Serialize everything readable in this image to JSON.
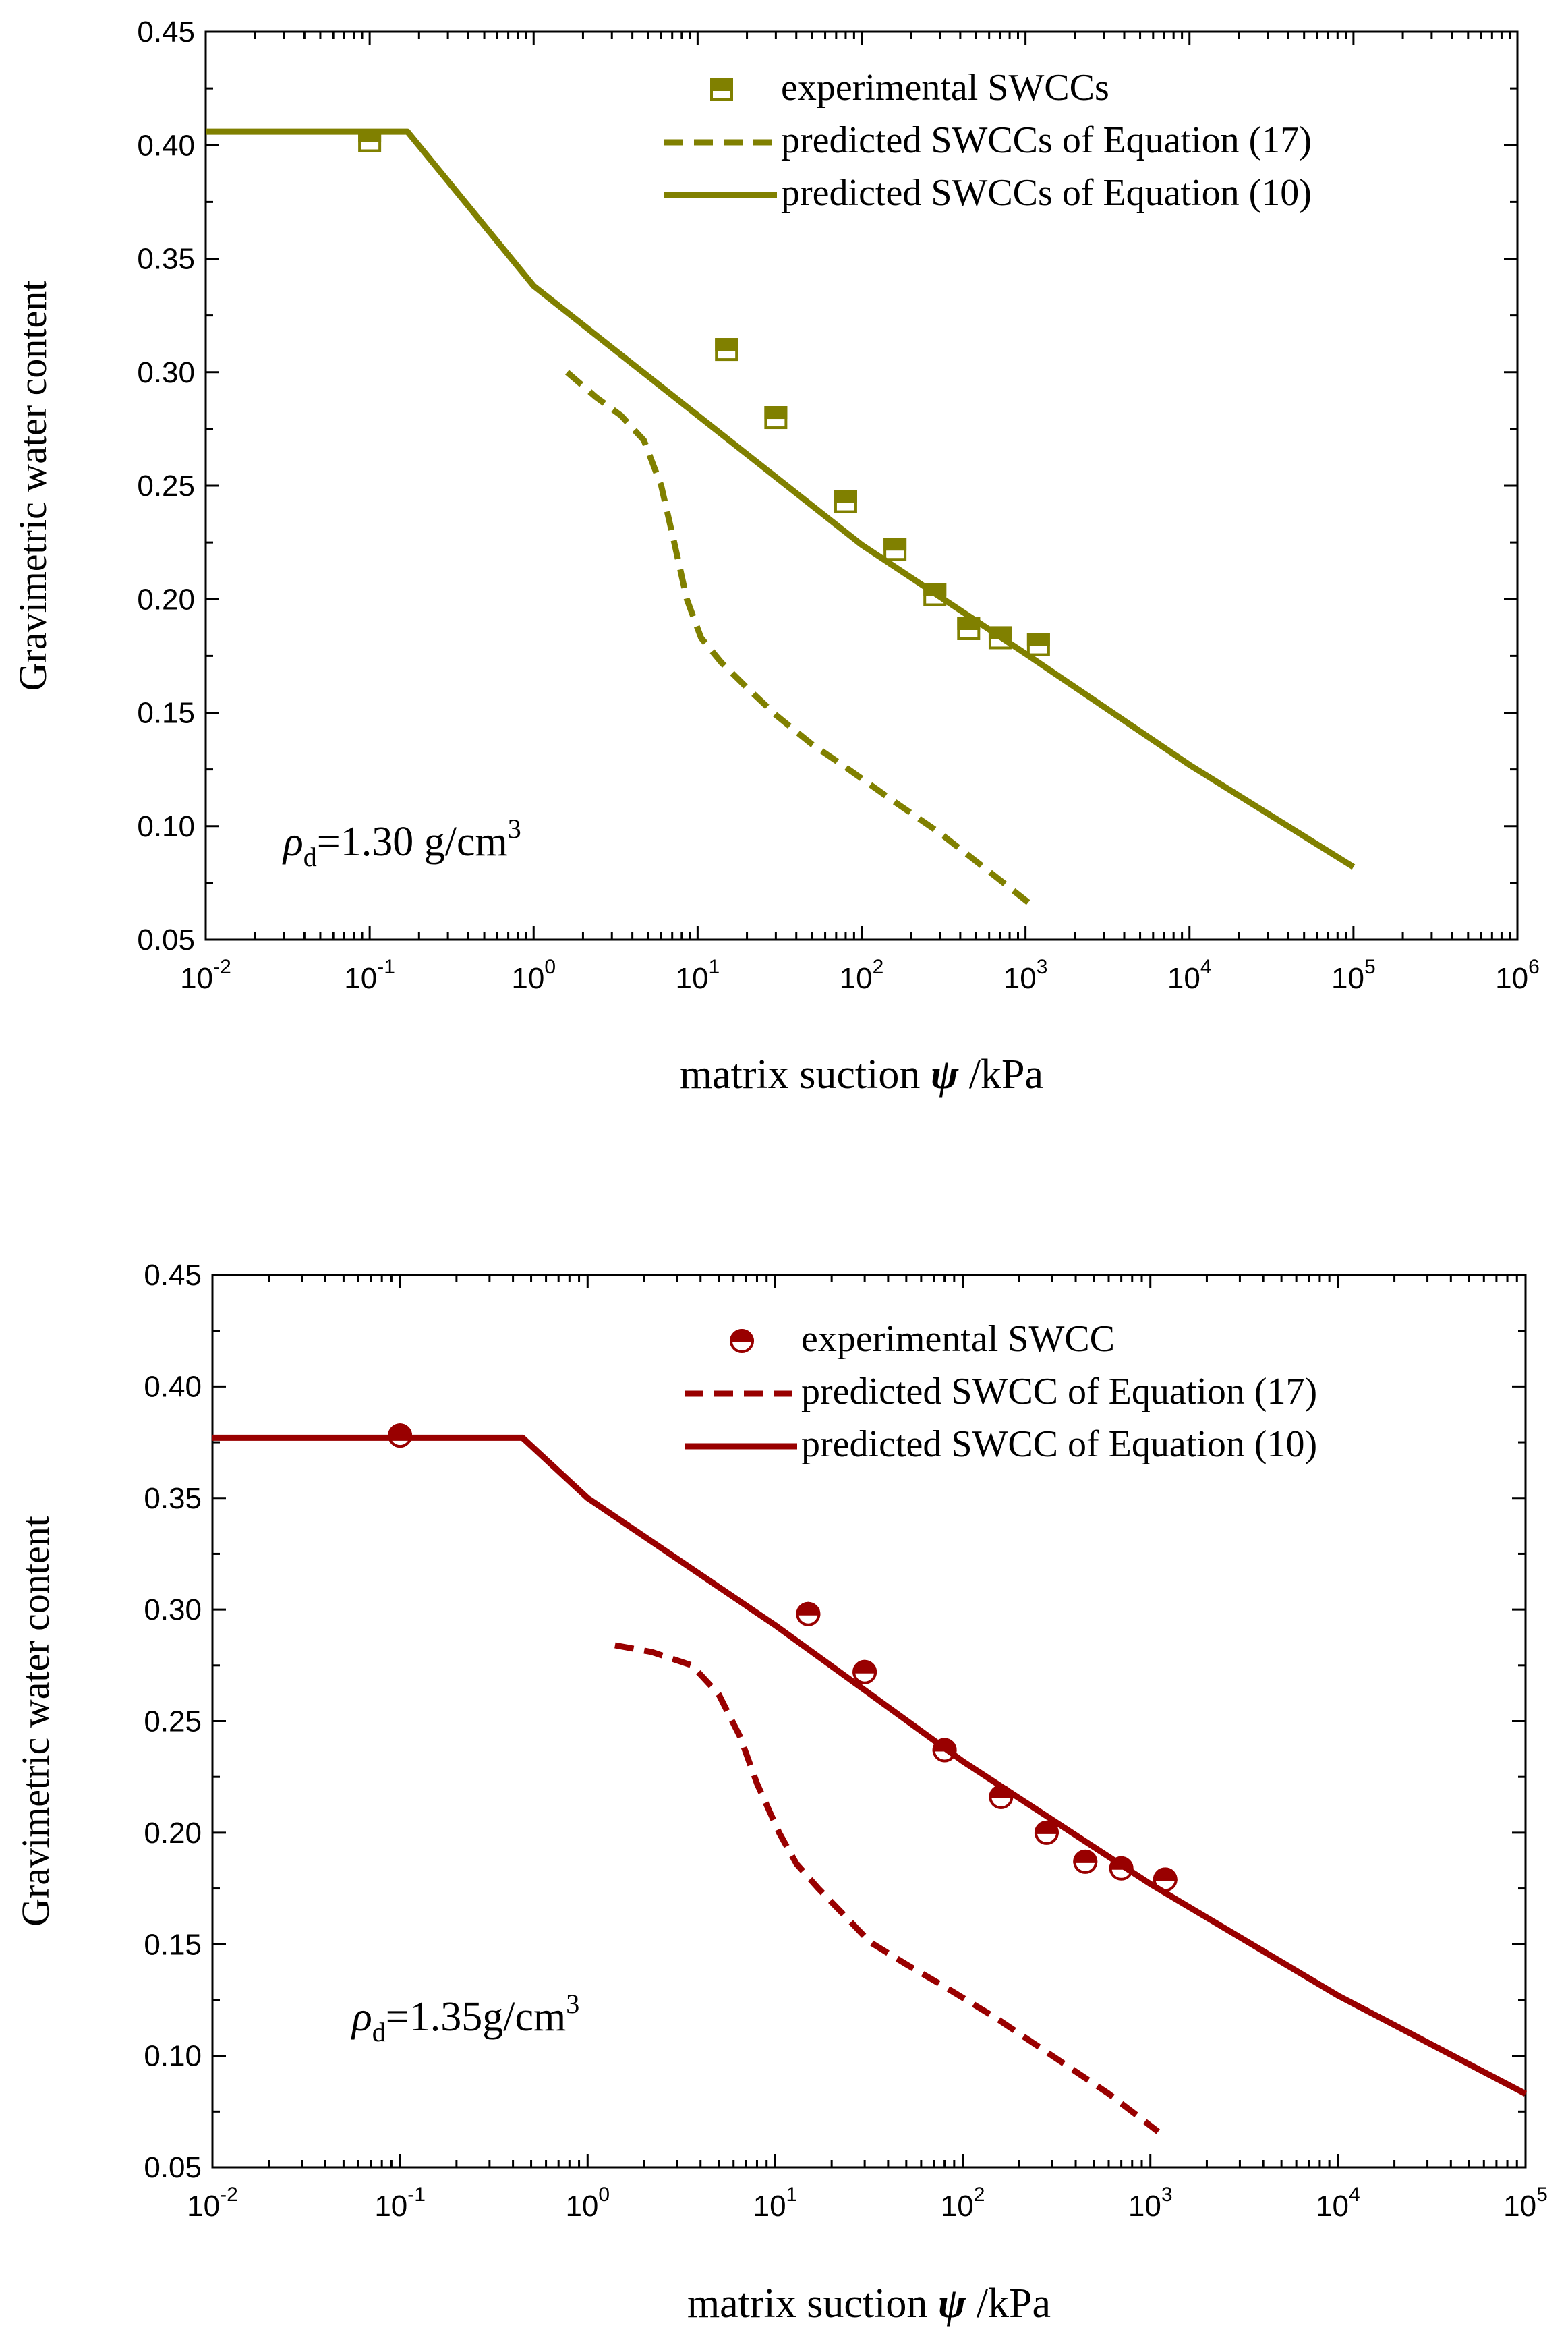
{
  "chart_data": [
    {
      "type": "scatter+line",
      "xscale": "log",
      "xlim": [
        0.01,
        1000000
      ],
      "ylim": [
        0.05,
        0.45
      ],
      "xlabel": {
        "main": "matrix suction",
        "symbol": "ψ",
        "unit": "/kPa"
      },
      "ylabel": "Gravimetric water content",
      "yticks": [
        "0.05",
        "0.10",
        "0.15",
        "0.20",
        "0.25",
        "0.30",
        "0.35",
        "0.40",
        "0.45"
      ],
      "xticks": [
        {
          "base": "10",
          "exp": "-2"
        },
        {
          "base": "10",
          "exp": "-1"
        },
        {
          "base": "10",
          "exp": "0"
        },
        {
          "base": "10",
          "exp": "1"
        },
        {
          "base": "10",
          "exp": "2"
        },
        {
          "base": "10",
          "exp": "3"
        },
        {
          "base": "10",
          "exp": "4"
        },
        {
          "base": "10",
          "exp": "5"
        },
        {
          "base": "10",
          "exp": "6"
        }
      ],
      "annotation": {
        "sym": "ρ",
        "sub": "d",
        "text": "=1.30 g/cm",
        "sup": "3"
      },
      "color": "#808000",
      "legend_position": "top-right",
      "marker": "square-half",
      "series": [
        {
          "name": "experimental SWCCs",
          "kind": "scatter",
          "points": [
            [
              0.1,
              0.402
            ],
            [
              15,
              0.31
            ],
            [
              30,
              0.28
            ],
            [
              80,
              0.243
            ],
            [
              160,
              0.222
            ],
            [
              280,
              0.202
            ],
            [
              450,
              0.187
            ],
            [
              700,
              0.183
            ],
            [
              1200,
              0.18
            ]
          ]
        },
        {
          "name": "predicted SWCCs of Equation (17)",
          "kind": "dashed",
          "points": [
            [
              1.6,
              0.3
            ],
            [
              2.4,
              0.289
            ],
            [
              3.4,
              0.281
            ],
            [
              4.7,
              0.27
            ],
            [
              6.0,
              0.25
            ],
            [
              7.2,
              0.225
            ],
            [
              8.6,
              0.2
            ],
            [
              10.5,
              0.183
            ],
            [
              14,
              0.172
            ],
            [
              20,
              0.161
            ],
            [
              30,
              0.149
            ],
            [
              50,
              0.136
            ],
            [
              80,
              0.126
            ],
            [
              150,
              0.112
            ],
            [
              300,
              0.097
            ],
            [
              600,
              0.08
            ],
            [
              1100,
              0.065
            ]
          ]
        },
        {
          "name": "predicted SWCCs of Equation (10)",
          "kind": "solid",
          "points": [
            [
              0.01,
              0.406
            ],
            [
              0.17,
              0.406
            ],
            [
              1,
              0.338
            ],
            [
              10,
              0.281
            ],
            [
              100,
              0.224
            ],
            [
              1000,
              0.176
            ],
            [
              10000,
              0.127
            ],
            [
              100000,
              0.082
            ]
          ]
        }
      ]
    },
    {
      "type": "scatter+line",
      "xscale": "log",
      "xlim": [
        0.01,
        100000
      ],
      "ylim": [
        0.05,
        0.45
      ],
      "xlabel": {
        "main": "matrix suction",
        "symbol": "ψ",
        "unit": "/kPa"
      },
      "ylabel": "Gravimetric water content",
      "yticks": [
        "0.05",
        "0.10",
        "0.15",
        "0.20",
        "0.25",
        "0.30",
        "0.35",
        "0.40",
        "0.45"
      ],
      "xticks": [
        {
          "base": "10",
          "exp": "-2"
        },
        {
          "base": "10",
          "exp": "-1"
        },
        {
          "base": "10",
          "exp": "0"
        },
        {
          "base": "10",
          "exp": "1"
        },
        {
          "base": "10",
          "exp": "2"
        },
        {
          "base": "10",
          "exp": "3"
        },
        {
          "base": "10",
          "exp": "4"
        },
        {
          "base": "10",
          "exp": "5"
        }
      ],
      "annotation": {
        "sym": "ρ",
        "sub": "d",
        "text": "=1.35g/cm",
        "sup": "3"
      },
      "color": "#990000",
      "legend_position": "top-right",
      "marker": "circle-half",
      "series": [
        {
          "name": "experimental SWCC",
          "kind": "scatter",
          "points": [
            [
              0.1,
              0.378
            ],
            [
              15,
              0.298
            ],
            [
              30,
              0.272
            ],
            [
              80,
              0.237
            ],
            [
              160,
              0.216
            ],
            [
              280,
              0.2
            ],
            [
              450,
              0.187
            ],
            [
              700,
              0.184
            ],
            [
              1200,
              0.179
            ]
          ]
        },
        {
          "name": "predicted SWCC of Equation (17)",
          "kind": "dashed",
          "points": [
            [
              1.4,
              0.284
            ],
            [
              2.2,
              0.281
            ],
            [
              3.6,
              0.275
            ],
            [
              5.0,
              0.262
            ],
            [
              6.5,
              0.243
            ],
            [
              8.0,
              0.222
            ],
            [
              10.5,
              0.2
            ],
            [
              13,
              0.186
            ],
            [
              17,
              0.175
            ],
            [
              24,
              0.162
            ],
            [
              32,
              0.151
            ],
            [
              50,
              0.141
            ],
            [
              80,
              0.131
            ],
            [
              150,
              0.117
            ],
            [
              300,
              0.1
            ],
            [
              600,
              0.083
            ],
            [
              1100,
              0.066
            ]
          ]
        },
        {
          "name": "predicted SWCC of Equation (10)",
          "kind": "solid",
          "points": [
            [
              0.01,
              0.377
            ],
            [
              0.45,
              0.377
            ],
            [
              1,
              0.35
            ],
            [
              10,
              0.293
            ],
            [
              100,
              0.232
            ],
            [
              1000,
              0.177
            ],
            [
              10000,
              0.127
            ],
            [
              100000,
              0.083
            ]
          ]
        }
      ]
    }
  ]
}
